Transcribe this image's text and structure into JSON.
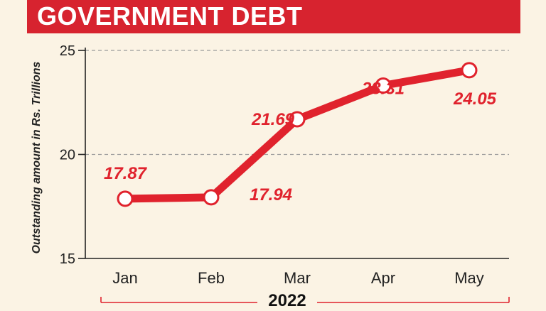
{
  "header": {
    "title": "GOVERNMENT DEBT"
  },
  "chart_data": {
    "type": "line",
    "categories": [
      "Jan",
      "Feb",
      "Mar",
      "Apr",
      "May"
    ],
    "values": [
      17.87,
      17.94,
      21.69,
      23.31,
      24.05
    ],
    "value_labels": [
      "17.87",
      "17.94",
      "21.69",
      "23.31",
      "24.05"
    ],
    "title": "GOVERNMENT DEBT",
    "xlabel": "2022",
    "ylabel": "Outstanding amount in Rs. Trillions",
    "ylim": [
      15,
      25
    ],
    "yticks": [
      15,
      20,
      25
    ],
    "ytick_labels": [
      "15",
      "20",
      "25"
    ],
    "grid": "dashed horizontal at 20 and 25",
    "colors": {
      "line": "#e0222d",
      "header": "#d7232f",
      "background": "#fbf3e4",
      "marker_fill": "#ffffff",
      "label": "#e0222d"
    }
  }
}
